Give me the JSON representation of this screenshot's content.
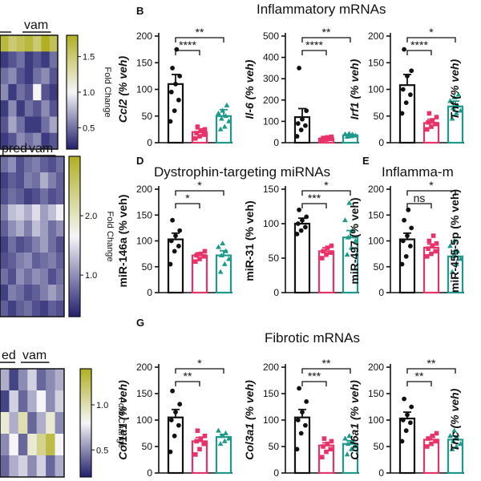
{
  "panel_letters": [
    "B",
    "D",
    "E",
    "G"
  ],
  "heatmaps": [
    {
      "group_labels": [
        "vam"
      ],
      "colorbar_ticks": [
        "1.5",
        "1.0",
        "0.5"
      ],
      "colorbar_label": "Fold Change",
      "vmin": 0.2,
      "vmax": 1.8,
      "tick_values": [
        1.5,
        1.0,
        0.5
      ],
      "matrix": [
        [
          1.7,
          1.5,
          1.6,
          1.7,
          1.5,
          1.8,
          1.6
        ],
        [
          0.3,
          0.4,
          0.5,
          0.3,
          0.4,
          0.3,
          0.5
        ],
        [
          0.5,
          0.6,
          0.4,
          0.3,
          0.5,
          0.6,
          0.4
        ],
        [
          0.6,
          0.3,
          0.5,
          0.4,
          1.0,
          0.4,
          0.3
        ],
        [
          0.3,
          0.6,
          0.3,
          0.5,
          0.4,
          0.6,
          0.4
        ],
        [
          0.4,
          0.7,
          0.5,
          0.3,
          0.3,
          0.5,
          0.7
        ],
        [
          0.3,
          0.4,
          0.6,
          0.5,
          0.6,
          0.3,
          0.4
        ]
      ]
    },
    {
      "group_labels": [
        "pred",
        "vam"
      ],
      "colorbar_ticks": [
        "2.0",
        "1.0"
      ],
      "colorbar_label": "Fold Change",
      "vmin": 0.3,
      "vmax": 3.0,
      "tick_values": [
        2.0,
        1.0
      ],
      "matrix": [
        [
          0.8,
          1.0,
          0.6,
          0.8,
          0.9,
          0.7,
          0.6,
          0.8
        ],
        [
          0.5,
          0.7,
          0.6,
          0.9,
          0.8,
          1.2,
          0.9,
          0.7
        ],
        [
          0.6,
          0.8,
          0.7,
          0.5,
          0.6,
          0.8,
          0.6,
          0.7
        ],
        [
          0.9,
          1.3,
          1.4,
          1.2,
          1.5,
          1.1,
          1.3,
          1.6
        ],
        [
          0.7,
          1.0,
          1.2,
          0.9,
          1.3,
          1.1,
          0.8,
          1.0
        ],
        [
          0.5,
          0.8,
          0.6,
          0.7,
          0.9,
          1.1,
          0.8,
          0.6
        ],
        [
          0.6,
          0.7,
          0.9,
          1.0,
          0.7,
          0.8,
          0.9,
          0.7
        ],
        [
          0.8,
          0.6,
          1.0,
          0.8,
          1.0,
          0.9,
          0.6,
          0.8
        ],
        [
          0.5,
          0.9,
          0.8,
          0.6,
          0.7,
          0.9,
          1.1,
          0.9
        ],
        [
          0.7,
          0.5,
          0.7,
          0.8,
          0.6,
          0.5,
          0.7,
          0.6
        ]
      ]
    },
    {
      "group_labels": [
        "ed",
        "vam"
      ],
      "colorbar_ticks": [
        "1.0",
        "0.5"
      ],
      "colorbar_label": "Fold Change",
      "vmin": 0.2,
      "vmax": 1.4,
      "tick_values": [
        1.0,
        0.5
      ],
      "matrix": [
        [
          0.6,
          0.3,
          0.5,
          0.7,
          0.4,
          0.5,
          0.6
        ],
        [
          0.3,
          0.7,
          0.4,
          0.6,
          0.8,
          0.5,
          0.7
        ],
        [
          0.9,
          0.6,
          1.0,
          0.4,
          0.6,
          0.9,
          0.5
        ],
        [
          0.5,
          0.8,
          0.4,
          0.9,
          1.1,
          1.3,
          0.8
        ],
        [
          0.4,
          0.6,
          0.7,
          0.5,
          0.7,
          0.4,
          0.6
        ]
      ]
    }
  ],
  "groups": [
    {
      "color": "#111111"
    },
    {
      "color": "#e8336a"
    },
    {
      "color": "#1f9a8a"
    }
  ],
  "section_titles": {
    "B": "Inflammatory mRNAs",
    "D": "Dystrophin-targeting miRNAs",
    "E": "Inflamma-m",
    "G": "Fibrotic mRNAs"
  },
  "chart_data": [
    {
      "type": "bar",
      "panel": "B",
      "ylabel": "Ccl2 (% veh)",
      "italic": true,
      "ylim": [
        0,
        200
      ],
      "yticks": [
        0,
        50,
        100,
        150,
        200
      ],
      "values": [
        110,
        20,
        50
      ],
      "errors": [
        18,
        6,
        12
      ],
      "points": [
        [
          40,
          60,
          80,
          95,
          110,
          125,
          140,
          175
        ],
        [
          8,
          12,
          15,
          18,
          22,
          25,
          30
        ],
        [
          25,
          30,
          40,
          45,
          50,
          55,
          60,
          70
        ]
      ],
      "sig": [
        "****",
        "**"
      ]
    },
    {
      "type": "bar",
      "panel": "B",
      "ylabel": "Il-6 (% veh)",
      "italic": true,
      "ylim": [
        0,
        500
      ],
      "yticks": [
        0,
        100,
        200,
        300,
        400,
        500
      ],
      "values": [
        120,
        20,
        35
      ],
      "errors": [
        40,
        5,
        4
      ],
      "points": [
        [
          30,
          60,
          80,
          90,
          110,
          150,
          350
        ],
        [
          12,
          15,
          18,
          22,
          25,
          28
        ],
        [
          28,
          30,
          33,
          36,
          38,
          40,
          42
        ]
      ],
      "sig": [
        "****",
        "**"
      ]
    },
    {
      "type": "bar",
      "panel": "B",
      "ylabel": "Irf1 (% veh)",
      "italic": true,
      "ylim": [
        0,
        200
      ],
      "yticks": [
        0,
        50,
        100,
        150,
        200
      ],
      "values": [
        108,
        37,
        68
      ],
      "errors": [
        20,
        7,
        10
      ],
      "points": [
        [
          55,
          75,
          90,
          100,
          125,
          135,
          175
        ],
        [
          25,
          30,
          35,
          38,
          42,
          48,
          55
        ],
        [
          45,
          55,
          60,
          65,
          70,
          78,
          85,
          90
        ]
      ],
      "sig": [
        "****",
        "*"
      ]
    },
    {
      "type": "bar",
      "panel": "B",
      "ylabel": "Tnf (% veh)",
      "italic": true,
      "ylim": [
        0,
        200
      ],
      "yticks": [],
      "values": [],
      "errors": [],
      "points": [],
      "sig": []
    },
    {
      "type": "bar",
      "panel": "D",
      "ylabel": "miR-146a (% veh)",
      "italic": false,
      "ylim": [
        0,
        200
      ],
      "yticks": [
        0,
        50,
        100,
        150,
        200
      ],
      "values": [
        103,
        72,
        72
      ],
      "errors": [
        12,
        5,
        9
      ],
      "points": [
        [
          55,
          80,
          90,
          100,
          110,
          120,
          140
        ],
        [
          60,
          65,
          70,
          72,
          75,
          80
        ],
        [
          40,
          55,
          65,
          72,
          80,
          88,
          95
        ]
      ],
      "sig": [
        "*",
        "*"
      ]
    },
    {
      "type": "bar",
      "panel": "D",
      "ylabel": "miR-31 (% veh)",
      "italic": false,
      "ylim": [
        0,
        150
      ],
      "yticks": [
        0,
        50,
        100,
        150
      ],
      "values": [
        100,
        60,
        80
      ],
      "errors": [
        8,
        5,
        10
      ],
      "points": [
        [
          85,
          90,
          95,
          100,
          105,
          110,
          120
        ],
        [
          50,
          55,
          58,
          60,
          65,
          68
        ],
        [
          55,
          65,
          75,
          80,
          90,
          105,
          130
        ]
      ],
      "sig": [
        "***",
        "*"
      ]
    },
    {
      "type": "bar",
      "panel": "E",
      "ylabel": "miR-497 (% veh)",
      "italic": false,
      "ylim": [
        0,
        200
      ],
      "yticks": [
        0,
        50,
        100,
        150,
        200
      ],
      "values": [
        103,
        87,
        70
      ],
      "errors": [
        12,
        7,
        10
      ],
      "points": [
        [
          55,
          70,
          90,
          100,
          110,
          125,
          140,
          160
        ],
        [
          70,
          75,
          80,
          85,
          90,
          95,
          100,
          110
        ],
        [
          40,
          55,
          65,
          70,
          80,
          90,
          100
        ]
      ],
      "sig": [
        "ns",
        "*"
      ]
    },
    {
      "type": "bar",
      "panel": "E",
      "ylabel": "miR-455-5p (% veh)",
      "italic": false,
      "ylim": [
        0,
        200
      ],
      "yticks": [],
      "values": [],
      "errors": [],
      "points": [],
      "sig": []
    },
    {
      "type": "bar",
      "panel": "G",
      "ylabel": "Col1a1 (% veh)",
      "italic": true,
      "ylim": [
        0,
        200
      ],
      "yticks": [
        0,
        50,
        100,
        150,
        200
      ],
      "values": [
        105,
        60,
        68
      ],
      "errors": [
        15,
        7,
        5
      ],
      "points": [
        [
          40,
          70,
          90,
          100,
          115,
          130,
          155
        ],
        [
          35,
          45,
          55,
          60,
          65,
          70,
          80
        ],
        [
          55,
          60,
          65,
          70,
          75,
          80
        ]
      ],
      "sig": [
        "**",
        "*"
      ]
    },
    {
      "type": "bar",
      "panel": "G",
      "ylabel": "Col3a1 (% veh)",
      "italic": true,
      "ylim": [
        0,
        200
      ],
      "yticks": [
        0,
        50,
        100,
        150,
        200
      ],
      "values": [
        105,
        52,
        55
      ],
      "errors": [
        15,
        5,
        6
      ],
      "points": [
        [
          45,
          75,
          90,
          100,
          115,
          135,
          160
        ],
        [
          30,
          40,
          45,
          50,
          55,
          60,
          65
        ],
        [
          35,
          45,
          50,
          55,
          60,
          65,
          70
        ]
      ],
      "sig": [
        "***",
        "**"
      ]
    },
    {
      "type": "bar",
      "panel": "G",
      "ylabel": "Col6a1 (% veh)",
      "italic": true,
      "ylim": [
        0,
        200
      ],
      "yticks": [
        0,
        50,
        100,
        150,
        200
      ],
      "values": [
        103,
        63,
        63
      ],
      "errors": [
        12,
        5,
        7
      ],
      "points": [
        [
          60,
          80,
          95,
          100,
          110,
          125,
          140
        ],
        [
          50,
          55,
          60,
          65,
          70,
          75
        ],
        [
          45,
          50,
          55,
          60,
          65,
          70,
          80
        ]
      ],
      "sig": [
        "**",
        "**"
      ]
    },
    {
      "type": "bar",
      "panel": "G",
      "ylabel": "Tnc (% veh)",
      "italic": true,
      "ylim": [
        0,
        200
      ],
      "yticks": [],
      "values": [],
      "errors": [],
      "points": [],
      "sig": []
    }
  ]
}
